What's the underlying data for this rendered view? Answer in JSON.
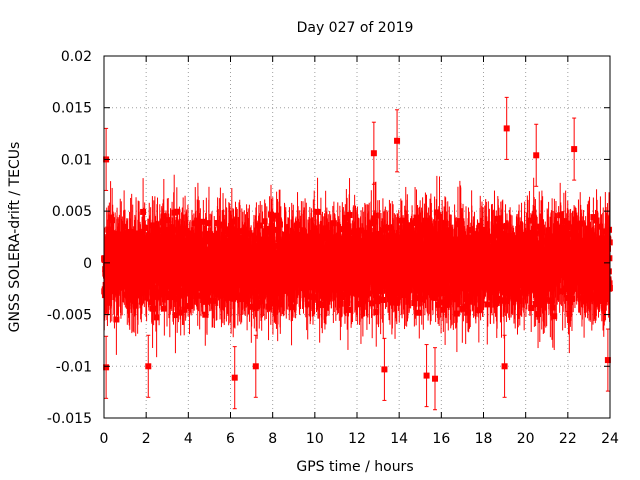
{
  "chart_data": {
    "type": "scatter",
    "title": "Day 027 of 2019",
    "xlabel": "GPS time / hours",
    "ylabel": "GNSS SOLERA-drift / TECUs",
    "xlim": [
      0,
      24
    ],
    "ylim": [
      -0.015,
      0.02
    ],
    "x_ticks": [
      0,
      2,
      4,
      6,
      8,
      10,
      12,
      14,
      16,
      18,
      20,
      22,
      24
    ],
    "x_tick_labels": [
      "0",
      "2",
      "4",
      "6",
      "8",
      "10",
      "12",
      "14",
      "16",
      "18",
      "20",
      "22",
      "24"
    ],
    "y_ticks": [
      -0.015,
      -0.01,
      -0.005,
      0,
      0.005,
      0.01,
      0.015,
      0.02
    ],
    "y_tick_labels": [
      "-0.015",
      "-0.01",
      "-0.005",
      "0",
      "0.005",
      "0.01",
      "0.015",
      "0.02"
    ],
    "grid": true,
    "series": [
      {
        "name": "SOLERA drift",
        "color": "#ff0000",
        "marker": "square",
        "error_bars": true,
        "sampling_interval_hours": 0.00833,
        "point_count": 2880,
        "center_value": 0.0,
        "typical_spread": 0.004,
        "typical_error": 0.003,
        "max_value": 0.013,
        "min_value": -0.0113,
        "notable_points": [
          {
            "x": 0.1,
            "y": 0.01
          },
          {
            "x": 0.1,
            "y": -0.0101
          },
          {
            "x": 2.1,
            "y": -0.01
          },
          {
            "x": 6.2,
            "y": -0.0111
          },
          {
            "x": 7.2,
            "y": -0.01
          },
          {
            "x": 12.8,
            "y": 0.0106
          },
          {
            "x": 13.3,
            "y": -0.0103
          },
          {
            "x": 13.9,
            "y": 0.0118
          },
          {
            "x": 15.3,
            "y": -0.0109
          },
          {
            "x": 15.7,
            "y": -0.0112
          },
          {
            "x": 19.1,
            "y": 0.013
          },
          {
            "x": 19.0,
            "y": -0.01
          },
          {
            "x": 20.5,
            "y": 0.0104
          },
          {
            "x": 22.3,
            "y": 0.011
          },
          {
            "x": 23.9,
            "y": -0.0094
          }
        ]
      }
    ]
  }
}
